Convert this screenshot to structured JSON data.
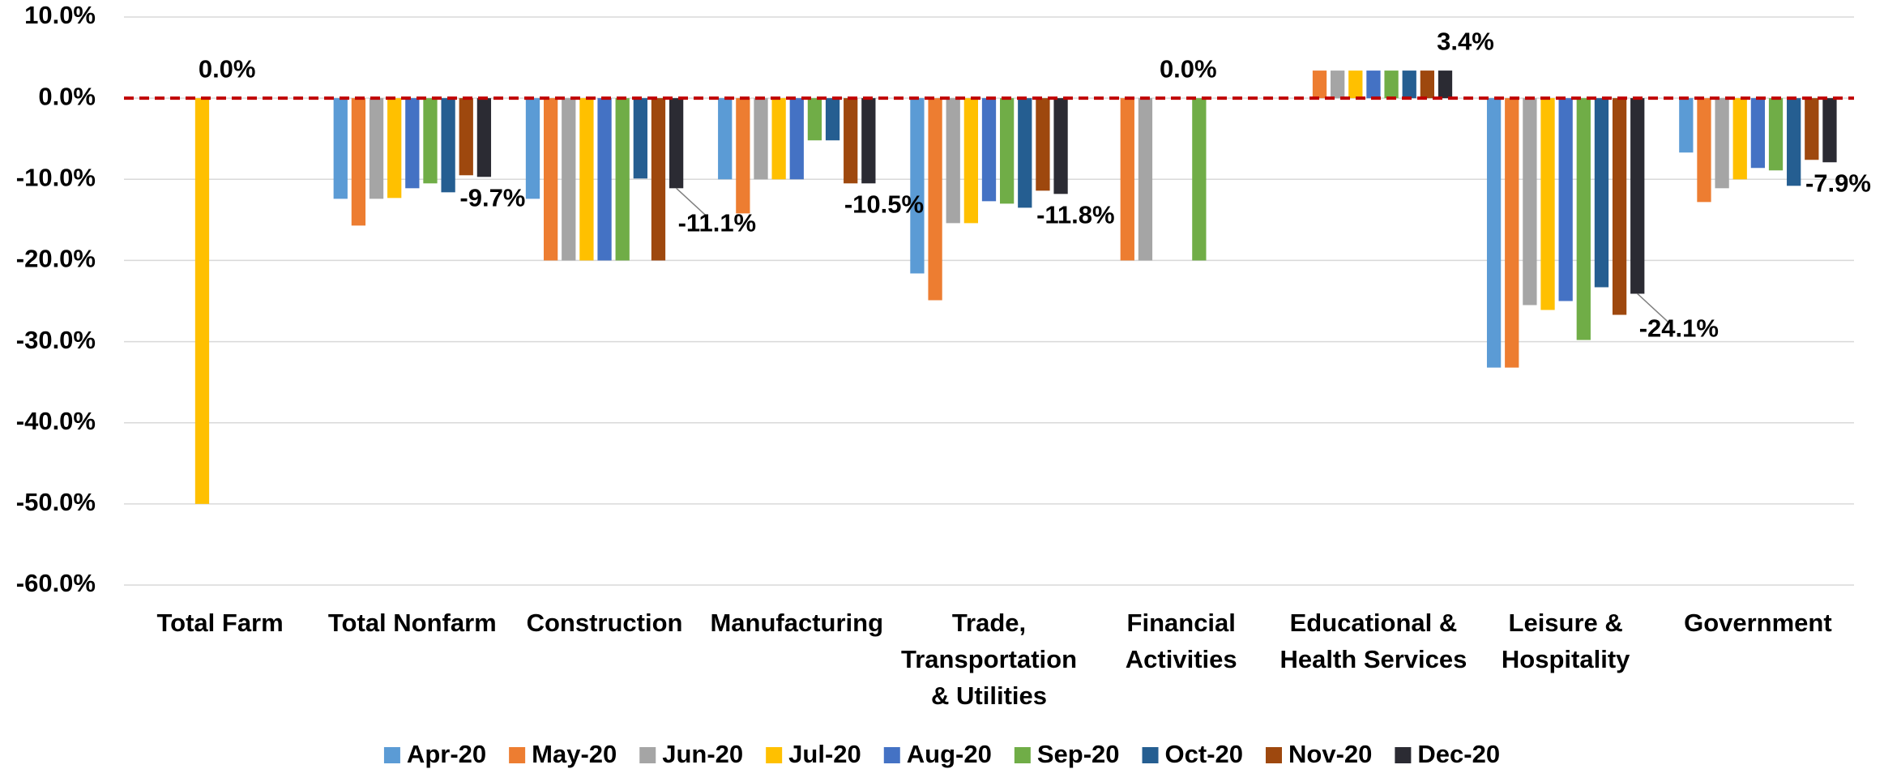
{
  "chart_data": {
    "type": "bar",
    "categories": [
      "Total Farm",
      "Total Nonfarm",
      "Construction",
      "Manufacturing",
      "Trade, Transportation & Utilities",
      "Financial Activities",
      "Educational & Health Services",
      "Leisure & Hospitality",
      "Government"
    ],
    "series": [
      {
        "name": "Apr-20",
        "color": "#5b9bd5",
        "values": [
          0,
          -12.4,
          -12.4,
          -10.0,
          -21.6,
          0,
          0,
          -33.2,
          -6.7
        ]
      },
      {
        "name": "May-20",
        "color": "#ed7d31",
        "values": [
          0,
          -15.7,
          -20.0,
          -14.2,
          -24.9,
          -20.0,
          3.4,
          -33.2,
          -12.8
        ]
      },
      {
        "name": "Jun-20",
        "color": "#a5a5a5",
        "values": [
          0,
          -12.4,
          -20.0,
          -10.0,
          -15.4,
          -20.0,
          3.4,
          -25.5,
          -11.1
        ]
      },
      {
        "name": "Jul-20",
        "color": "#ffc000",
        "values": [
          -50.0,
          -12.3,
          -20.0,
          -10.0,
          -15.4,
          0,
          3.4,
          -26.1,
          -10.0
        ]
      },
      {
        "name": "Aug-20",
        "color": "#4472c4",
        "values": [
          0,
          -11.1,
          -20.0,
          -10.0,
          -12.7,
          0,
          3.4,
          -25.0,
          -8.6
        ]
      },
      {
        "name": "Sep-20",
        "color": "#70ad47",
        "values": [
          0,
          -10.5,
          -20.0,
          -5.2,
          -13.0,
          -20.0,
          3.4,
          -29.8,
          -8.9
        ]
      },
      {
        "name": "Oct-20",
        "color": "#255e91",
        "values": [
          0,
          -11.6,
          -9.9,
          -5.2,
          -13.5,
          0,
          3.4,
          -23.3,
          -10.8
        ]
      },
      {
        "name": "Nov-20",
        "color": "#9e480e",
        "values": [
          0,
          -9.5,
          -20.0,
          -10.5,
          -11.4,
          0,
          3.4,
          -26.7,
          -7.6
        ]
      },
      {
        "name": "Dec-20",
        "color": "#2b2b33",
        "values": [
          0,
          -9.7,
          -11.1,
          -10.5,
          -11.8,
          0,
          3.4,
          -24.1,
          -7.9
        ],
        "value_labels": [
          "0.0%",
          "-9.7%",
          "-11.1%",
          "-10.5%",
          "-11.8%",
          "0.0%",
          "3.4%",
          "-24.1%",
          "-7.9%"
        ]
      }
    ],
    "ylim": [
      -60,
      10
    ],
    "yticks": [
      {
        "value": -60,
        "label": "-60.0%"
      },
      {
        "value": -50,
        "label": "-50.0%"
      },
      {
        "value": -40,
        "label": "-40.0%"
      },
      {
        "value": -30,
        "label": "-30.0%"
      },
      {
        "value": -20,
        "label": "-20.0%"
      },
      {
        "value": -10,
        "label": "-10.0%"
      },
      {
        "value": 0,
        "label": "0.0%"
      },
      {
        "value": 10,
        "label": "10.0%"
      }
    ],
    "grid": true
  }
}
